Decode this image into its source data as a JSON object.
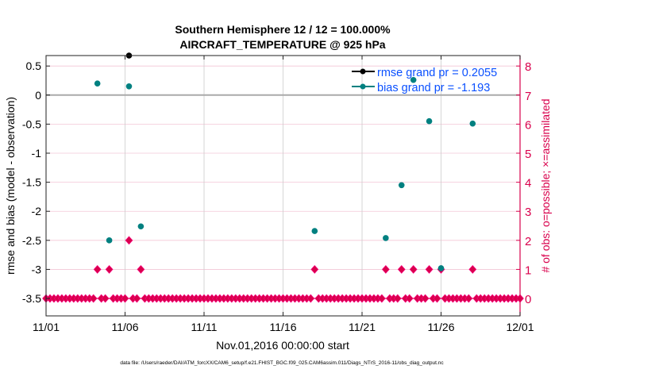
{
  "chart_data": {
    "type": "scatter",
    "title": [
      "Southern Hemisphere 12 / 12 = 100.000%",
      "AIRCRAFT_TEMPERATURE @ 925 hPa"
    ],
    "xlabel": "Nov.01,2016 00:00:00 start",
    "ylabel": "rmse and bias (model - observation)",
    "ylabel_right": "# of obs: o=possible; ×=assimilated",
    "x_unit": "days since 11/01",
    "xlim": [
      0,
      30
    ],
    "ylim": [
      -3.8,
      0.68
    ],
    "ylim_right": [
      -0.6,
      8.36
    ],
    "x_ticks": [
      {
        "v": 0,
        "label": "11/01"
      },
      {
        "v": 5,
        "label": "11/06"
      },
      {
        "v": 10,
        "label": "11/11"
      },
      {
        "v": 15,
        "label": "11/16"
      },
      {
        "v": 20,
        "label": "11/21"
      },
      {
        "v": 25,
        "label": "11/26"
      },
      {
        "v": 30,
        "label": "12/01"
      }
    ],
    "y_ticks": [
      "0.5",
      "0",
      "-0.5",
      "-1",
      "-1.5",
      "-2",
      "-2.5",
      "-3",
      "-3.5"
    ],
    "y_tick_values": [
      0.5,
      0,
      -0.5,
      -1,
      -1.5,
      -2,
      -2.5,
      -3,
      -3.5
    ],
    "y_right_ticks": [
      "0",
      "1",
      "2",
      "3",
      "4",
      "5",
      "6",
      "7",
      "8"
    ],
    "y_right_tick_values": [
      0,
      1,
      2,
      3,
      4,
      5,
      6,
      7,
      8
    ],
    "legend": {
      "placement": "top-right",
      "entries": [
        "rmse grand pr = 0.2055",
        "bias grand pr = -1.193"
      ]
    },
    "series": [
      {
        "name": "rmse",
        "color": "#000000",
        "x": [
          5.25
        ],
        "y": [
          0.68
        ]
      },
      {
        "name": "bias",
        "color": "#008080",
        "x": [
          3.25,
          4.0,
          5.25,
          6.0,
          17.0,
          21.5,
          22.5,
          23.25,
          24.25,
          25.0,
          27.0
        ],
        "y": [
          0.2,
          -2.5,
          0.15,
          -2.26,
          -2.34,
          -2.46,
          -1.55,
          0.26,
          -0.45,
          -2.98,
          -0.49
        ]
      },
      {
        "name": "obs count",
        "axis": "right",
        "color": "#d9004c",
        "step": 0.25,
        "nonzero_x": [
          3.25,
          4.0,
          5.25,
          6.0,
          17.0,
          21.5,
          22.5,
          23.25,
          24.25,
          25.0,
          27.0
        ],
        "nonzero_y": [
          1,
          1,
          2,
          1,
          1,
          1,
          1,
          1,
          1,
          1,
          1
        ],
        "default_y": 0
      }
    ]
  },
  "footer": "data file: /Users/raeder/DAI/ATM_forcXX/CAM6_setup/f.e21.FHIST_BGC.f09_025.CAM6assim.011/Diags_NTrS_2016-11/obs_diag_output.nc"
}
